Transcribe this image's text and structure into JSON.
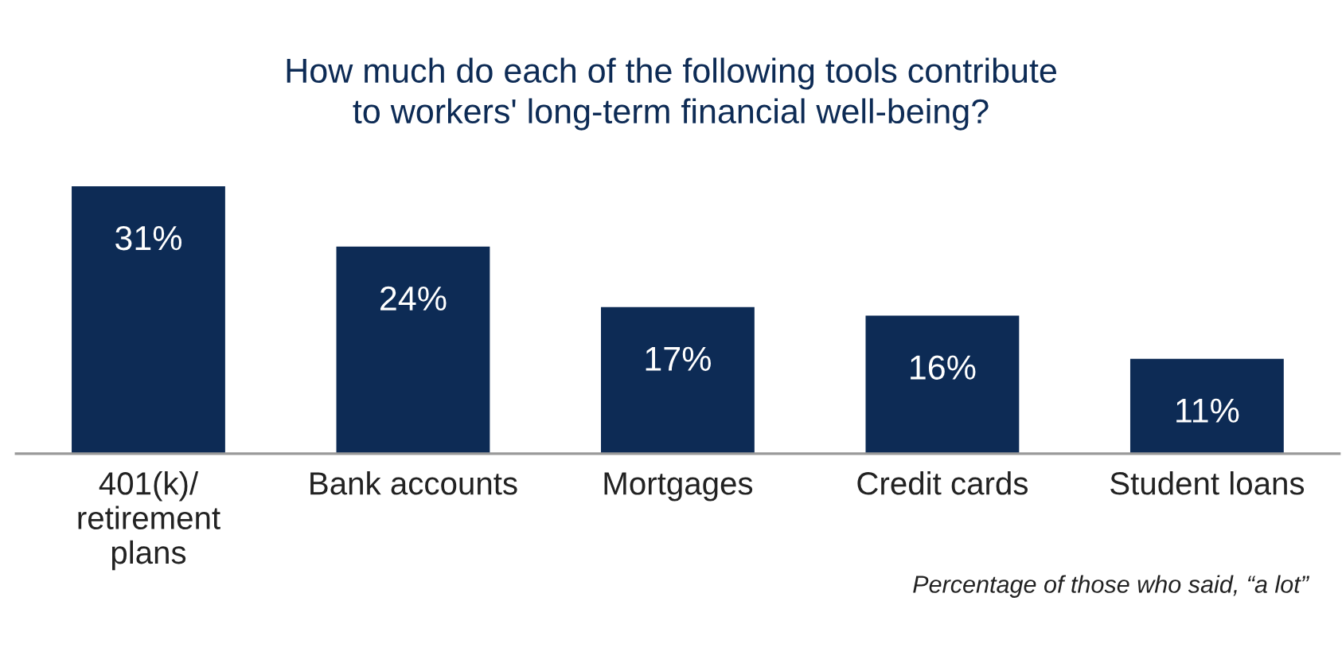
{
  "chart_data": {
    "type": "bar",
    "title": "How much do each of the following tools contribute\nto workers' long-term financial well-being?",
    "categories": [
      "401(k)/\nretirement\nplans",
      "Bank accounts",
      "Mortgages",
      "Credit cards",
      "Student loans"
    ],
    "values": [
      31,
      24,
      17,
      16,
      11
    ],
    "value_labels": [
      "31%",
      "24%",
      "17%",
      "16%",
      "11%"
    ],
    "color": "#0d2b55",
    "annotations": [
      "Percentage of those who said, “a lot”"
    ],
    "grid": false,
    "legend": false
  }
}
